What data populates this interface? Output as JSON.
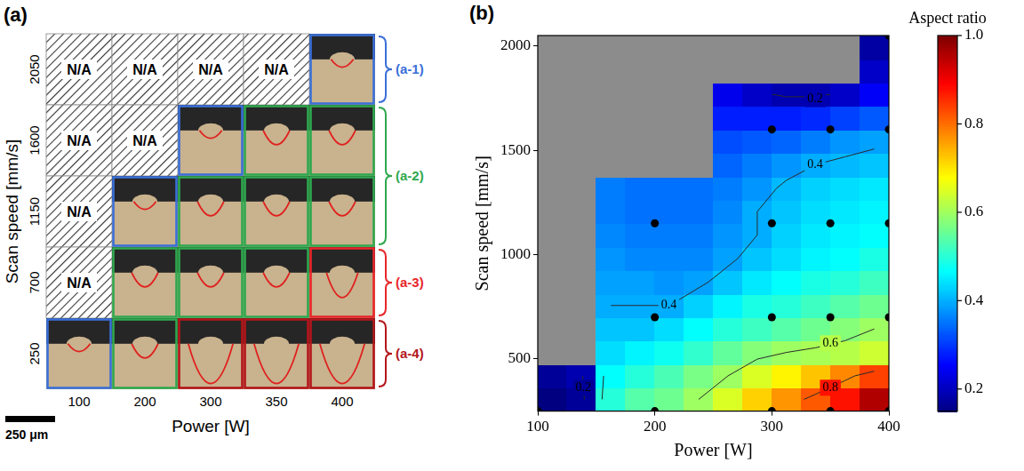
{
  "panel_a": {
    "panel_label": "(a)",
    "x_label": "Power [W]",
    "y_label": "Scan speed [mm/s]",
    "powers": [
      100,
      200,
      300,
      350,
      400
    ],
    "scan_speeds": [
      2050,
      1600,
      1150,
      700,
      250
    ],
    "empty_text": "N/A",
    "cells": [
      [
        null,
        null,
        null,
        null,
        "(a-1)"
      ],
      [
        null,
        null,
        "(a-1)",
        "(a-2)",
        "(a-2)"
      ],
      [
        null,
        "(a-1)",
        "(a-2)",
        "(a-2)",
        "(a-2)"
      ],
      [
        null,
        "(a-2)",
        "(a-2)",
        "(a-2)",
        "(a-3)"
      ],
      [
        "(a-1)",
        "(a-2)",
        "(a-4)",
        "(a-4)",
        "(a-4)"
      ]
    ],
    "groups": [
      {
        "label": "(a-1)",
        "color": "#3a6fd8",
        "rows": [
          2050
        ]
      },
      {
        "label": "(a-2)",
        "color": "#2fa84f",
        "rows": [
          1600,
          1150
        ]
      },
      {
        "label": "(a-3)",
        "color": "#e8262a",
        "rows": [
          700
        ]
      },
      {
        "label": "(a-4)",
        "color": "#b3161b",
        "rows": [
          250
        ]
      }
    ],
    "scale_bar": "250 μm"
  },
  "chart_data": {
    "type": "heatmap",
    "panel_label": "(b)",
    "x_label": "Power [W]",
    "y_label": "Scan speed [mm/s]",
    "xlim": [
      100,
      400
    ],
    "xticks": [
      100,
      200,
      300,
      400
    ],
    "ylim": [
      250,
      2050
    ],
    "yticks": [
      500,
      1000,
      1500,
      2000
    ],
    "grid": false,
    "x_edges": [
      100,
      125,
      150,
      175,
      200,
      225,
      250,
      275,
      300,
      325,
      350,
      375,
      400
    ],
    "y_edges": [
      250,
      362.5,
      475,
      587.5,
      700,
      812.5,
      925,
      1037.5,
      1150,
      1262.5,
      1375,
      1487.5,
      1600,
      1712.5,
      1825,
      1937.5,
      2050
    ],
    "cells": [
      [
        0.15,
        0.17,
        0.5,
        0.54,
        0.56,
        0.6,
        0.65,
        0.72,
        0.77,
        0.82,
        0.88,
        0.96
      ],
      [
        0.17,
        0.19,
        0.47,
        0.5,
        0.53,
        0.57,
        0.6,
        0.65,
        0.69,
        0.73,
        0.78,
        0.84
      ],
      [
        null,
        null,
        0.44,
        0.46,
        0.48,
        0.51,
        0.55,
        0.58,
        0.6,
        0.61,
        0.62,
        0.64
      ],
      [
        null,
        null,
        0.42,
        0.42,
        0.44,
        0.47,
        0.5,
        0.52,
        0.54,
        0.56,
        0.58,
        0.6
      ],
      [
        null,
        null,
        0.4,
        0.4,
        0.4,
        0.43,
        0.46,
        0.49,
        0.5,
        0.52,
        0.54,
        0.56
      ],
      [
        null,
        null,
        0.39,
        0.39,
        0.38,
        0.39,
        0.42,
        0.45,
        0.47,
        0.49,
        0.5,
        0.52
      ],
      [
        null,
        null,
        0.38,
        0.37,
        0.37,
        0.37,
        0.39,
        0.42,
        0.44,
        0.46,
        0.47,
        0.49
      ],
      [
        null,
        null,
        0.37,
        0.36,
        0.36,
        0.36,
        0.38,
        0.4,
        0.43,
        0.45,
        0.46,
        0.47
      ],
      [
        null,
        null,
        0.36,
        0.35,
        0.35,
        0.35,
        0.37,
        0.4,
        0.42,
        0.44,
        0.45,
        0.46
      ],
      [
        null,
        null,
        0.36,
        0.35,
        0.35,
        0.35,
        0.36,
        0.38,
        0.41,
        0.43,
        0.44,
        0.45
      ],
      [
        null,
        null,
        null,
        null,
        null,
        null,
        0.34,
        0.36,
        0.38,
        0.4,
        0.41,
        0.42
      ],
      [
        null,
        null,
        null,
        null,
        null,
        null,
        0.32,
        0.33,
        0.34,
        0.36,
        0.38,
        0.39
      ],
      [
        null,
        null,
        null,
        null,
        null,
        null,
        0.28,
        0.28,
        0.28,
        0.29,
        0.31,
        0.33
      ],
      [
        null,
        null,
        null,
        null,
        null,
        null,
        0.24,
        0.21,
        0.19,
        0.19,
        0.21,
        0.25
      ],
      [
        null,
        null,
        null,
        null,
        null,
        null,
        null,
        null,
        null,
        null,
        null,
        0.21
      ],
      [
        null,
        null,
        null,
        null,
        null,
        null,
        null,
        null,
        null,
        null,
        null,
        0.18
      ]
    ],
    "points": {
      "x": [
        400,
        300,
        350,
        400,
        200,
        300,
        350,
        400,
        200,
        300,
        350,
        400,
        100,
        200,
        300,
        350,
        400
      ],
      "y": [
        2050,
        1600,
        1600,
        1600,
        1150,
        1150,
        1150,
        1150,
        700,
        700,
        700,
        700,
        250,
        250,
        250,
        250,
        250
      ]
    },
    "contour_levels": [
      0.2,
      0.4,
      0.6,
      0.8
    ],
    "contour_labels": [
      {
        "value": 0.2,
        "x": 139,
        "y": 362
      },
      {
        "value": 0.2,
        "x": 337,
        "y": 1745
      },
      {
        "value": 0.4,
        "x": 212,
        "y": 756
      },
      {
        "value": 0.4,
        "x": 337,
        "y": 1431
      },
      {
        "value": 0.6,
        "x": 350,
        "y": 575
      },
      {
        "value": 0.8,
        "x": 350,
        "y": 362
      }
    ],
    "colorbar": {
      "title": "Aspect ratio",
      "range": [
        0.15,
        1.0
      ],
      "ticks": [
        0.2,
        0.4,
        0.6,
        0.8,
        {
          "value": 1,
          "label": "1.0"
        }
      ]
    }
  }
}
